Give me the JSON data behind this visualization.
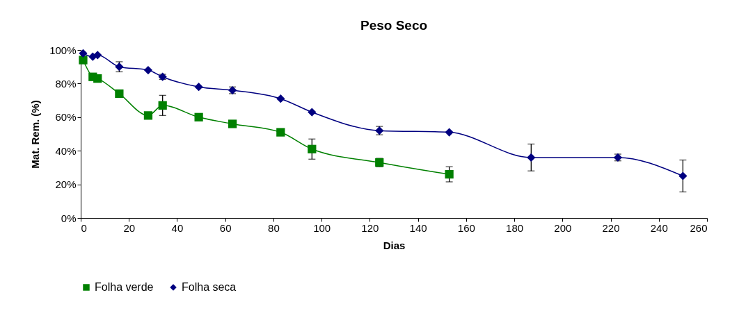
{
  "chart_data": {
    "type": "line",
    "title": "Peso Seco",
    "xlabel": "Dias",
    "ylabel": "Mat. Rem. (%)",
    "xlim": [
      0,
      260
    ],
    "xticks": [
      0,
      20,
      40,
      60,
      80,
      100,
      120,
      140,
      160,
      180,
      200,
      220,
      240,
      260
    ],
    "ylim": [
      0,
      100
    ],
    "yticks": [
      {
        "value": 0,
        "label": "0%"
      },
      {
        "value": 20,
        "label": "20%"
      },
      {
        "value": 40,
        "label": "40%"
      },
      {
        "value": 60,
        "label": "60%"
      },
      {
        "value": 80,
        "label": "80%"
      },
      {
        "value": 100,
        "label": "100%"
      }
    ],
    "legend": "bottom",
    "grid": false,
    "series": [
      {
        "name": "Folha verde",
        "color": "#008000",
        "marker": "square",
        "x": [
          1,
          5,
          7,
          16,
          28,
          34,
          49,
          63,
          83,
          96,
          124,
          153
        ],
        "values": [
          94,
          84,
          83,
          74,
          61,
          67,
          60,
          56,
          51,
          41,
          33,
          26
        ],
        "errors": [
          null,
          null,
          null,
          null,
          null,
          6,
          null,
          null,
          null,
          6,
          2.5,
          4.5
        ]
      },
      {
        "name": "Folha seca",
        "color": "#000080",
        "marker": "diamond",
        "x": [
          1,
          5,
          7,
          16,
          28,
          34,
          49,
          63,
          83,
          96,
          124,
          153,
          187,
          223,
          250
        ],
        "values": [
          98,
          96,
          97,
          90,
          88,
          84,
          78,
          76,
          71,
          63,
          52,
          51,
          36,
          36,
          25
        ],
        "errors": [
          null,
          null,
          null,
          3,
          null,
          1.5,
          null,
          2,
          null,
          null,
          2.5,
          null,
          8,
          2,
          9.5
        ]
      }
    ]
  }
}
